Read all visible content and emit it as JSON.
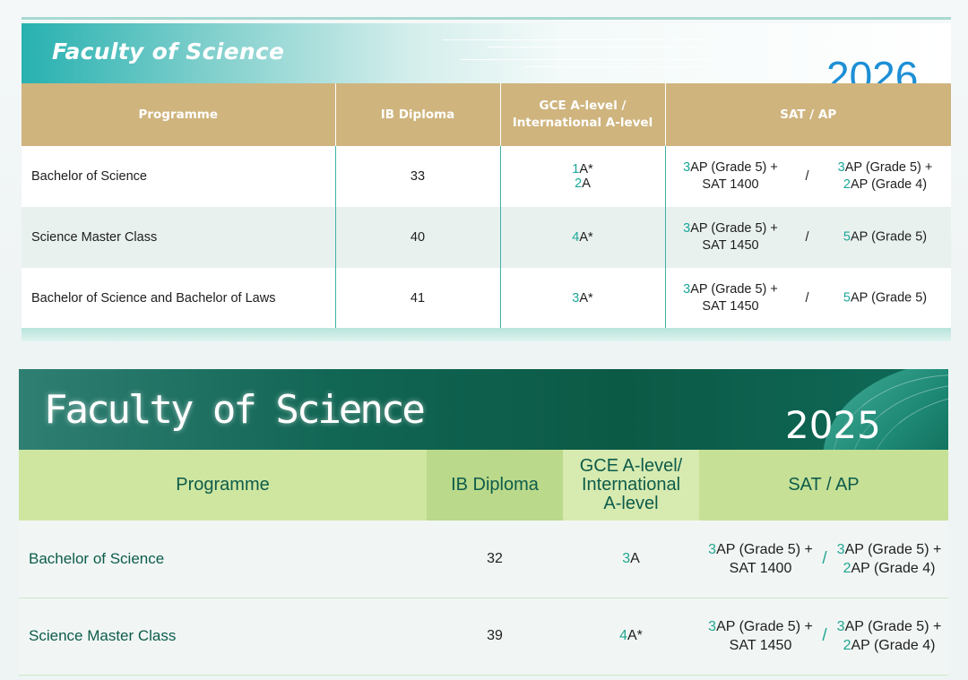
{
  "panel_2026": {
    "title": "Faculty of Science",
    "year": "2026",
    "headers": [
      "Programme",
      "IB Diploma",
      "GCE A-level /",
      "International A-level",
      "SAT / AP"
    ],
    "rows": [
      {
        "programme": "Bachelor of Science",
        "ib": "33",
        "gce": [
          {
            "n": "1",
            "t": "A* "
          },
          {
            "n": "2",
            "t": "A"
          }
        ],
        "sat_a": [
          {
            "n": "3",
            "t": "AP (Grade 5) +"
          },
          {
            "n": "",
            "t": "SAT 1400"
          }
        ],
        "sat_b": [
          {
            "n": "3",
            "t": "AP (Grade 5) +"
          },
          {
            "n": "2",
            "t": "AP (Grade 4)"
          }
        ]
      },
      {
        "programme": "Science Master Class",
        "ib": "40",
        "gce": [
          {
            "n": "4",
            "t": "A*"
          }
        ],
        "sat_a": [
          {
            "n": "3",
            "t": "AP (Grade 5) +"
          },
          {
            "n": "",
            "t": "SAT 1450"
          }
        ],
        "sat_b": [
          {
            "n": "5",
            "t": "AP (Grade 5)"
          }
        ]
      },
      {
        "programme": "Bachelor of Science and Bachelor of Laws",
        "ib": "41",
        "gce": [
          {
            "n": "3",
            "t": "A*"
          }
        ],
        "sat_a": [
          {
            "n": "3",
            "t": "AP (Grade 5) +"
          },
          {
            "n": "",
            "t": "SAT 1450"
          }
        ],
        "sat_b": [
          {
            "n": "5",
            "t": "AP (Grade 5)"
          }
        ]
      }
    ]
  },
  "panel_2025": {
    "title": "Faculty of Science",
    "year": "2025",
    "headers": [
      "Programme",
      "IB Diploma",
      "GCE A-level/",
      "International",
      "A-level",
      "SAT / AP"
    ],
    "rows": [
      {
        "programme": "Bachelor of Science",
        "ib": "32",
        "gce": [
          {
            "n": "3",
            "t": "A"
          }
        ],
        "sat_a": [
          {
            "n": "3",
            "t": "AP (Grade 5) +"
          },
          {
            "n": "",
            "t": "SAT 1400"
          }
        ],
        "sat_b": [
          {
            "n": "3",
            "t": "AP (Grade 5) +"
          },
          {
            "n": "2",
            "t": "AP (Grade 4)"
          }
        ]
      },
      {
        "programme": "Science Master Class",
        "ib": "39",
        "gce": [
          {
            "n": "4",
            "t": "A*"
          }
        ],
        "sat_a": [
          {
            "n": "3",
            "t": "AP (Grade 5) +"
          },
          {
            "n": "",
            "t": "SAT 1450"
          }
        ],
        "sat_b": [
          {
            "n": "3",
            "t": "AP (Grade 5) +"
          },
          {
            "n": "2",
            "t": "AP (Grade 4)"
          }
        ]
      }
    ]
  },
  "separator": "/"
}
